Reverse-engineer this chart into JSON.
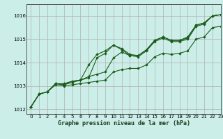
{
  "title": "Graphe pression niveau de la mer (hPa)",
  "bg_color": "#cceee8",
  "grid_color": "#b0b0b0",
  "line_color": "#1a5c1a",
  "marker_color": "#1a5c1a",
  "xlim": [
    -0.5,
    23
  ],
  "ylim": [
    1011.8,
    1016.5
  ],
  "yticks": [
    1012,
    1013,
    1014,
    1015,
    1016
  ],
  "xticks": [
    0,
    1,
    2,
    3,
    4,
    5,
    6,
    7,
    8,
    9,
    10,
    11,
    12,
    13,
    14,
    15,
    16,
    17,
    18,
    19,
    20,
    21,
    22,
    23
  ],
  "lines": [
    [
      1012.1,
      1012.65,
      1012.75,
      1013.1,
      1013.05,
      1013.15,
      1013.25,
      1013.35,
      1014.2,
      1014.4,
      1014.75,
      1014.55,
      1014.3,
      1014.25,
      1014.5,
      1014.9,
      1015.05,
      1014.9,
      1014.9,
      1015.0,
      1015.55,
      1015.65,
      1016.0,
      1016.05
    ],
    [
      1012.1,
      1012.65,
      1012.75,
      1013.1,
      1013.05,
      1013.2,
      1013.25,
      1013.9,
      1014.35,
      1014.5,
      1014.75,
      1014.6,
      1014.35,
      1014.3,
      1014.55,
      1014.95,
      1015.1,
      1014.95,
      1014.95,
      1015.05,
      1015.6,
      1015.7,
      1016.0,
      1016.05
    ],
    [
      1012.1,
      1012.65,
      1012.75,
      1013.1,
      1013.1,
      1013.2,
      1013.25,
      1013.4,
      1013.5,
      1013.6,
      1014.2,
      1014.45,
      1014.3,
      1014.3,
      1014.55,
      1014.95,
      1015.1,
      1014.95,
      1014.95,
      1015.1,
      1015.6,
      1015.7,
      1016.0,
      1016.05
    ],
    [
      1012.1,
      1012.65,
      1012.75,
      1013.05,
      1013.0,
      1013.05,
      1013.1,
      1013.15,
      1013.2,
      1013.25,
      1013.6,
      1013.7,
      1013.75,
      1013.75,
      1013.9,
      1014.25,
      1014.4,
      1014.35,
      1014.4,
      1014.5,
      1015.0,
      1015.1,
      1015.5,
      1015.55
    ]
  ]
}
